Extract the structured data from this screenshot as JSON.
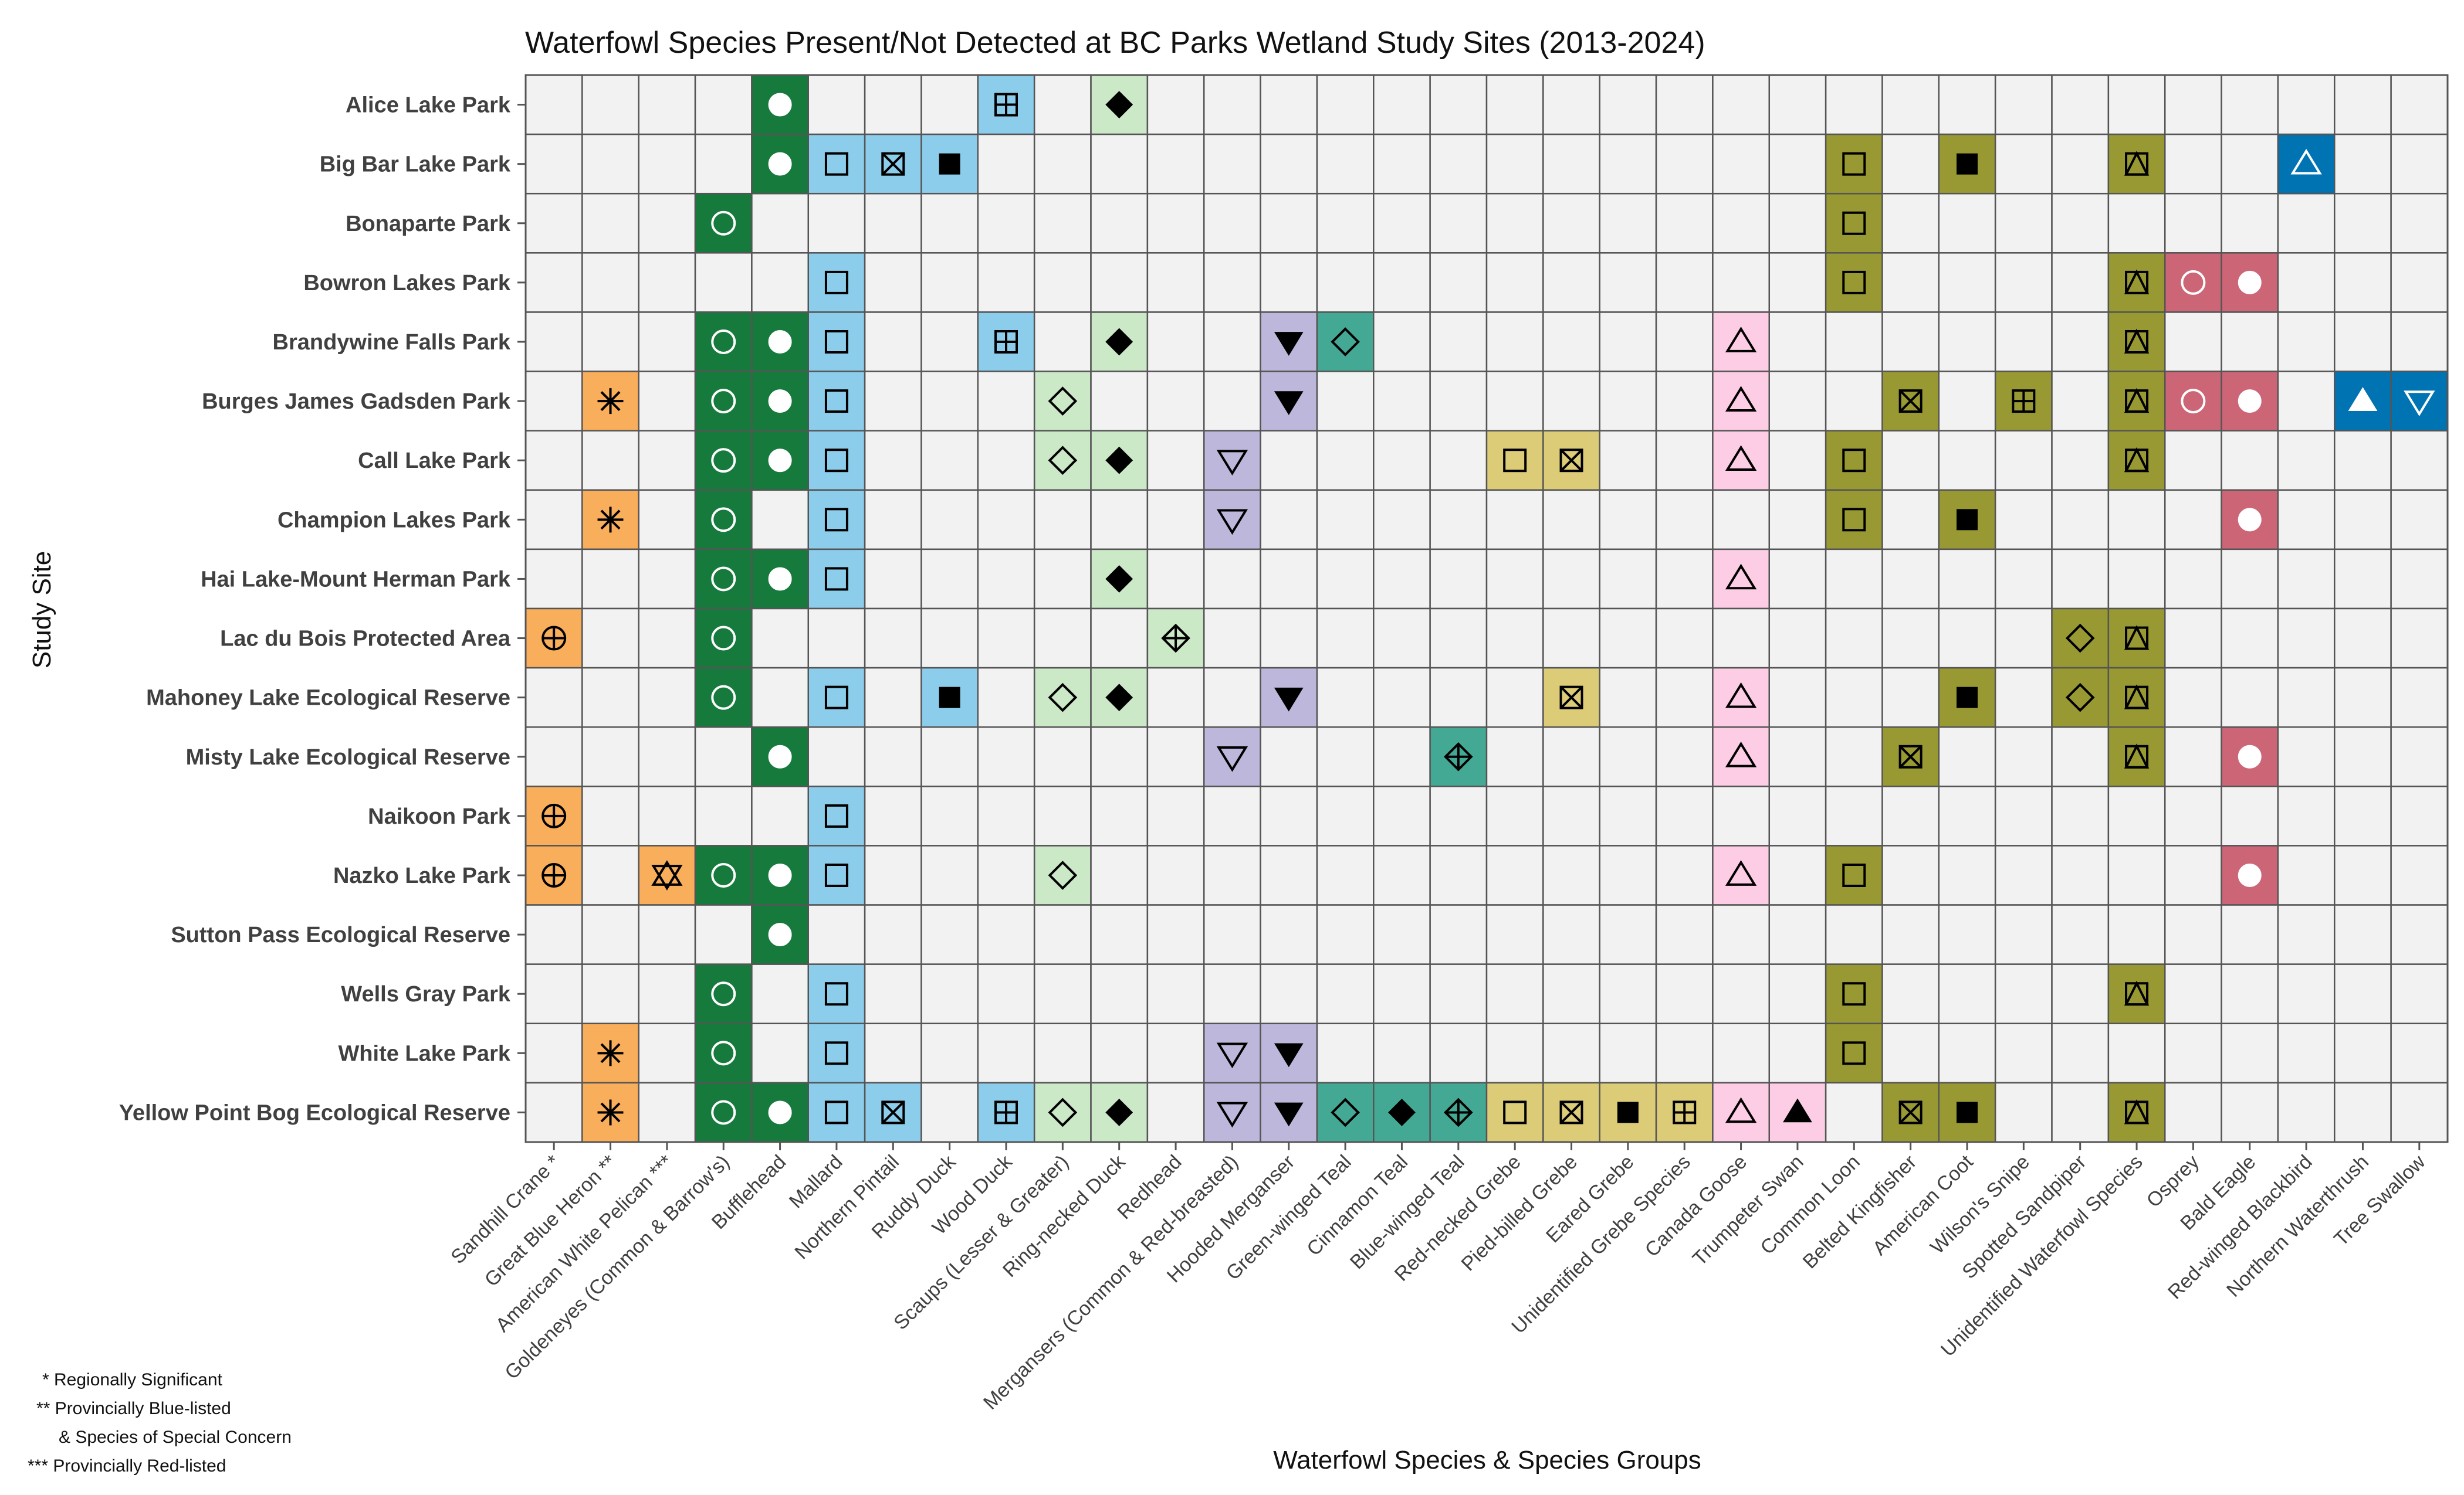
{
  "chart_data": {
    "type": "heatmap",
    "title": "Waterfowl Species Present/Not Detected at BC Parks Wetland Study Sites (2013-2024)",
    "xlabel": "Waterfowl Species & Species Groups",
    "ylabel": "Study Site",
    "legend_notes": [
      "* Regionally Significant",
      "** Provincially Blue-listed",
      "& Species of Special Concern",
      "*** Provincially Red-listed"
    ],
    "sites": [
      "Alice Lake Park",
      "Big Bar Lake Park",
      "Bonaparte Park",
      "Bowron Lakes Park",
      "Brandywine Falls Park",
      "Burges James Gadsden Park",
      "Call Lake Park",
      "Champion Lakes Park",
      "Hai Lake-Mount Herman Park",
      "Lac du Bois Protected Area",
      "Mahoney Lake Ecological Reserve",
      "Misty Lake Ecological Reserve",
      "Naikoon Park",
      "Nazko Lake Park",
      "Sutton Pass Ecological Reserve",
      "Wells Gray Park",
      "White Lake Park",
      "Yellow Point Bog Ecological Reserve"
    ],
    "species": [
      {
        "name": "Sandhill Crane *",
        "color": "#f9ae5b",
        "marker": "circle-plus",
        "marker_color": "#000000"
      },
      {
        "name": "Great Blue Heron **",
        "color": "#f9ae5b",
        "marker": "asterisk",
        "marker_color": "#000000"
      },
      {
        "name": "American White Pelican ***",
        "color": "#f9ae5b",
        "marker": "star-of-david",
        "marker_color": "#000000"
      },
      {
        "name": "Goldeneyes (Common & Barrow's)",
        "color": "#157a3c",
        "marker": "circle-open",
        "marker_color": "#ffffff"
      },
      {
        "name": "Bufflehead",
        "color": "#157a3c",
        "marker": "circle-filled",
        "marker_color": "#ffffff"
      },
      {
        "name": "Mallard",
        "color": "#8ccdec",
        "marker": "square-open",
        "marker_color": "#000000"
      },
      {
        "name": "Northern Pintail",
        "color": "#8ccdec",
        "marker": "square-x",
        "marker_color": "#000000"
      },
      {
        "name": "Ruddy Duck",
        "color": "#8ccdec",
        "marker": "square-filled",
        "marker_color": "#000000"
      },
      {
        "name": "Wood Duck",
        "color": "#8ccdec",
        "marker": "square-plus",
        "marker_color": "#000000"
      },
      {
        "name": "Scaups (Lesser & Greater)",
        "color": "#cbe8c7",
        "marker": "diamond-open",
        "marker_color": "#000000"
      },
      {
        "name": "Ring-necked Duck",
        "color": "#cbe8c7",
        "marker": "diamond-filled",
        "marker_color": "#000000"
      },
      {
        "name": "Redhead",
        "color": "#cbe8c7",
        "marker": "diamond-plus",
        "marker_color": "#000000"
      },
      {
        "name": "Mergansers (Common & Red-breasted)",
        "color": "#bdb8db",
        "marker": "triangle-down-open",
        "marker_color": "#000000"
      },
      {
        "name": "Hooded Merganser",
        "color": "#bdb8db",
        "marker": "triangle-down-filled",
        "marker_color": "#000000"
      },
      {
        "name": "Green-winged Teal",
        "color": "#44a994",
        "marker": "diamond-open",
        "marker_color": "#000000"
      },
      {
        "name": "Cinnamon Teal",
        "color": "#44a994",
        "marker": "diamond-filled",
        "marker_color": "#000000"
      },
      {
        "name": "Blue-winged Teal",
        "color": "#44a994",
        "marker": "diamond-plus",
        "marker_color": "#000000"
      },
      {
        "name": "Red-necked Grebe",
        "color": "#ddcc77",
        "marker": "square-open",
        "marker_color": "#000000"
      },
      {
        "name": "Pied-billed Grebe",
        "color": "#ddcc77",
        "marker": "square-x",
        "marker_color": "#000000"
      },
      {
        "name": "Eared Grebe",
        "color": "#ddcc77",
        "marker": "square-filled",
        "marker_color": "#000000"
      },
      {
        "name": "Unidentified Grebe Species",
        "color": "#ddcc77",
        "marker": "square-plus",
        "marker_color": "#000000"
      },
      {
        "name": "Canada Goose",
        "color": "#fccde5",
        "marker": "triangle-up-open",
        "marker_color": "#000000"
      },
      {
        "name": "Trumpeter Swan",
        "color": "#fccde5",
        "marker": "triangle-up-filled",
        "marker_color": "#000000"
      },
      {
        "name": "Common Loon",
        "color": "#999933",
        "marker": "square-open",
        "marker_color": "#000000"
      },
      {
        "name": "Belted Kingfisher",
        "color": "#999933",
        "marker": "square-x",
        "marker_color": "#000000"
      },
      {
        "name": "American Coot",
        "color": "#999933",
        "marker": "square-filled",
        "marker_color": "#000000"
      },
      {
        "name": "Wilson's Snipe",
        "color": "#999933",
        "marker": "square-plus",
        "marker_color": "#000000"
      },
      {
        "name": "Spotted Sandpiper",
        "color": "#999933",
        "marker": "diamond-open",
        "marker_color": "#000000"
      },
      {
        "name": "Unidentified Waterfowl Species",
        "color": "#999933",
        "marker": "square-triangle",
        "marker_color": "#000000"
      },
      {
        "name": "Osprey",
        "color": "#cc6677",
        "marker": "circle-open",
        "marker_color": "#ffffff"
      },
      {
        "name": "Bald Eagle",
        "color": "#cc6677",
        "marker": "circle-filled",
        "marker_color": "#ffffff"
      },
      {
        "name": "Red-winged Blackbird",
        "color": "#0073b3",
        "marker": "triangle-up-open",
        "marker_color": "#ffffff"
      },
      {
        "name": "Northern Waterthrush",
        "color": "#0073b3",
        "marker": "triangle-up-filled",
        "marker_color": "#ffffff"
      },
      {
        "name": "Tree Swallow",
        "color": "#0073b3",
        "marker": "triangle-down-open",
        "marker_color": "#ffffff"
      }
    ],
    "empty_color": "#f2f2f2",
    "grid": true,
    "presence": [
      [
        4,
        8,
        10
      ],
      [
        4,
        5,
        6,
        7,
        23,
        25,
        28,
        31
      ],
      [
        3,
        23
      ],
      [
        5,
        23,
        28,
        29,
        30
      ],
      [
        3,
        4,
        5,
        8,
        10,
        13,
        14,
        21,
        28
      ],
      [
        1,
        3,
        4,
        5,
        9,
        13,
        21,
        24,
        26,
        28,
        29,
        30,
        32,
        33
      ],
      [
        3,
        4,
        5,
        9,
        10,
        12,
        17,
        18,
        21,
        23,
        28
      ],
      [
        1,
        3,
        5,
        12,
        23,
        25,
        30
      ],
      [
        3,
        4,
        5,
        10,
        21
      ],
      [
        0,
        3,
        11,
        27,
        28
      ],
      [
        3,
        5,
        7,
        9,
        10,
        13,
        18,
        21,
        25,
        27,
        28
      ],
      [
        4,
        12,
        16,
        21,
        24,
        28,
        30
      ],
      [
        0,
        5
      ],
      [
        0,
        2,
        3,
        4,
        5,
        9,
        21,
        23,
        30
      ],
      [
        4
      ],
      [
        3,
        5,
        23,
        28
      ],
      [
        1,
        3,
        5,
        12,
        13,
        23
      ],
      [
        1,
        3,
        4,
        5,
        6,
        8,
        9,
        10,
        12,
        13,
        14,
        15,
        16,
        17,
        18,
        19,
        20,
        21,
        22,
        24,
        25,
        28
      ]
    ]
  }
}
